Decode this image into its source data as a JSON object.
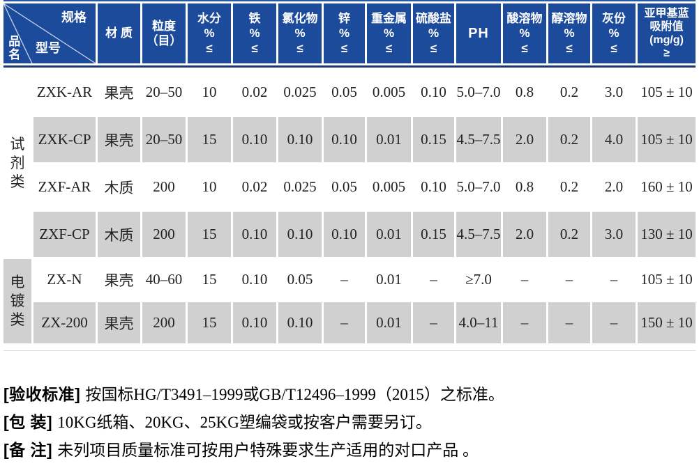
{
  "colors": {
    "header_blue": "#1d4b9c",
    "header_top_line": "#2a57aa",
    "header_bottom_line": "#19366e",
    "alt_row_gray": "#d0d0d0"
  },
  "table": {
    "corner": {
      "spec": "规格",
      "model": "型号",
      "category": "品名"
    },
    "columns": [
      {
        "id": "material",
        "lines": [
          "材 质"
        ]
      },
      {
        "id": "particle-size",
        "lines": [
          "粒度",
          "（目）"
        ]
      },
      {
        "id": "moisture",
        "lines": [
          "水分",
          "%",
          "≤"
        ]
      },
      {
        "id": "iron",
        "lines": [
          "铁",
          "%",
          "≤"
        ]
      },
      {
        "id": "chloride",
        "lines": [
          "氯化物",
          "%",
          "≤"
        ]
      },
      {
        "id": "zinc",
        "lines": [
          "锌",
          "%",
          "≤"
        ]
      },
      {
        "id": "heavy-metal",
        "lines": [
          "重金属",
          "%",
          "≤"
        ]
      },
      {
        "id": "sulfate",
        "lines": [
          "硫酸盐",
          "%",
          "≤"
        ]
      },
      {
        "id": "ph",
        "lines": [
          "PH"
        ]
      },
      {
        "id": "acid-soluble",
        "lines": [
          "酸溶物",
          "%",
          "≤"
        ]
      },
      {
        "id": "alcohol-soluble",
        "lines": [
          "醇溶物",
          "%",
          "≤"
        ]
      },
      {
        "id": "ash",
        "lines": [
          "灰份",
          "%",
          "≤"
        ]
      },
      {
        "id": "methylene-blue",
        "lines": [
          "亚甲基蓝",
          "吸附值",
          "(mg/g)",
          "≥"
        ]
      }
    ],
    "groups": [
      {
        "id": "reagent",
        "label": "试剂类",
        "rows": [
          [
            "ZXK-AR",
            "果壳",
            "20–50",
            "10",
            "0.02",
            "0.025",
            "0.05",
            "0.005",
            "0.10",
            "5.0–7.0",
            "0.8",
            "0.2",
            "3.0",
            "105 ± 10"
          ],
          [
            "ZXK-CP",
            "果壳",
            "20–50",
            "15",
            "0.10",
            "0.10",
            "0.10",
            "0.01",
            "0.15",
            "4.5–7.5",
            "2.0",
            "0.2",
            "4.0",
            "105 ± 10"
          ],
          [
            "ZXF-AR",
            "木质",
            "200",
            "10",
            "0.02",
            "0.025",
            "0.05",
            "0.005",
            "0.10",
            "5.0–7.0",
            "0.8",
            "0.2",
            "2.0",
            "160 ± 10"
          ],
          [
            "ZXF-CP",
            "木质",
            "200",
            "15",
            "0.10",
            "0.10",
            "0.10",
            "0.01",
            "0.15",
            "4.5–7.5",
            "2.0",
            "0.2",
            "3.0",
            "130 ± 10"
          ]
        ]
      },
      {
        "id": "electroplating",
        "label": "电镀类",
        "rows": [
          [
            "ZX-N",
            "果壳",
            "40–60",
            "15",
            "0.10",
            "0.05",
            "–",
            "0.01",
            "–",
            "≥7.0",
            "–",
            "–",
            "–",
            "105 ± 10"
          ],
          [
            "ZX-200",
            "果壳",
            "200",
            "15",
            "0.10",
            "0.10",
            "–",
            "0.01",
            "–",
            "4.0–11",
            "–",
            "–",
            "–",
            "150 ± 10"
          ]
        ]
      }
    ]
  },
  "notes": [
    {
      "label": "[验收标准]",
      "text": "按国标HG/T3491–1999或GB/T12496–1999（2015）之标准。"
    },
    {
      "label": "[包 装]",
      "text": "10KG纸箱、20KG、25KG塑编袋或按客户需要另订。"
    },
    {
      "label": "[备 注]",
      "text": "未列项目质量标准可按用户特殊要求生产适用的对口产品 。"
    }
  ]
}
